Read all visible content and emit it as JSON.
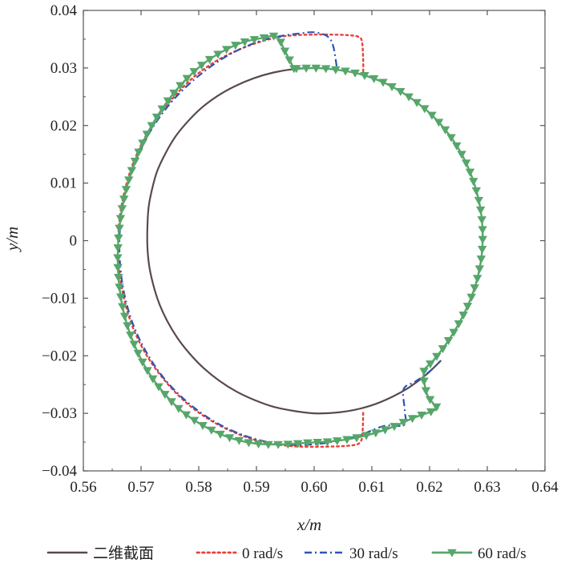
{
  "chart_data": {
    "type": "line",
    "xlabel": "x/m",
    "ylabel": "y/m",
    "xlim": [
      0.56,
      0.64
    ],
    "ylim": [
      -0.04,
      0.04
    ],
    "grid": false,
    "legend_position": "bottom",
    "x_ticks": [
      "0.56",
      "0.57",
      "0.58",
      "0.59",
      "0.60",
      "0.61",
      "0.62",
      "0.63",
      "0.64"
    ],
    "y_ticks": [
      "0.04",
      "0.03",
      "0.02",
      "0.01",
      "0",
      "−0.01",
      "−0.02",
      "−0.03",
      "−0.04"
    ],
    "series": [
      {
        "name": "二维截面",
        "color": "#5a4a4a",
        "style": "solid",
        "points": [
          [
            0.6,
            0.03
          ],
          [
            0.5964,
            0.0298
          ],
          [
            0.5929,
            0.0292
          ],
          [
            0.5895,
            0.0282
          ],
          [
            0.5862,
            0.0268
          ],
          [
            0.5832,
            0.0251
          ],
          [
            0.5804,
            0.023
          ],
          [
            0.578,
            0.0206
          ],
          [
            0.5759,
            0.018
          ],
          [
            0.5742,
            0.0151
          ],
          [
            0.5728,
            0.0121
          ],
          [
            0.5719,
            0.0089
          ],
          [
            0.5713,
            0.0057
          ],
          [
            0.5711,
            0.0023
          ],
          [
            0.5711,
            -0.001
          ],
          [
            0.5714,
            -0.0043
          ],
          [
            0.5721,
            -0.0076
          ],
          [
            0.5731,
            -0.0108
          ],
          [
            0.5745,
            -0.0139
          ],
          [
            0.5763,
            -0.0169
          ],
          [
            0.5784,
            -0.0196
          ],
          [
            0.5808,
            -0.0221
          ],
          [
            0.5835,
            -0.0243
          ],
          [
            0.5865,
            -0.0262
          ],
          [
            0.5897,
            -0.0277
          ],
          [
            0.5931,
            -0.0289
          ],
          [
            0.5966,
            -0.0296
          ],
          [
            0.6,
            -0.03
          ],
          [
            0.6035,
            -0.0299
          ],
          [
            0.607,
            -0.0294
          ],
          [
            0.6103,
            -0.0285
          ],
          [
            0.6136,
            -0.0271
          ],
          [
            0.6166,
            -0.0254
          ],
          [
            0.6194,
            -0.0233
          ],
          [
            0.6219,
            -0.0209
          ]
        ]
      },
      {
        "name": "0 rad/s",
        "color": "#e8403a",
        "style": "dotted",
        "points": [
          [
            0.6085,
            0.0294
          ],
          [
            0.6085,
            0.0312
          ],
          [
            0.6083,
            0.0345
          ],
          [
            0.6077,
            0.0354
          ],
          [
            0.6059,
            0.0357
          ],
          [
            0.6028,
            0.0358
          ],
          [
            0.6,
            0.0358
          ],
          [
            0.597,
            0.0357
          ],
          [
            0.594,
            0.0354
          ],
          [
            0.5905,
            0.0345
          ],
          [
            0.587,
            0.0332
          ],
          [
            0.583,
            0.0312
          ],
          [
            0.579,
            0.0283
          ],
          [
            0.5752,
            0.0244
          ],
          [
            0.5717,
            0.0197
          ],
          [
            0.569,
            0.0144
          ],
          [
            0.5672,
            0.0088
          ],
          [
            0.5662,
            0.003
          ],
          [
            0.5661,
            -0.003
          ],
          [
            0.5668,
            -0.0089
          ],
          [
            0.5684,
            -0.0146
          ],
          [
            0.5709,
            -0.0198
          ],
          [
            0.5742,
            -0.0244
          ],
          [
            0.578,
            -0.0283
          ],
          [
            0.5822,
            -0.0313
          ],
          [
            0.5866,
            -0.0335
          ],
          [
            0.5913,
            -0.035
          ],
          [
            0.5962,
            -0.0357
          ],
          [
            0.6012,
            -0.0358
          ],
          [
            0.6062,
            -0.0356
          ],
          [
            0.608,
            -0.035
          ],
          [
            0.6084,
            -0.033
          ],
          [
            0.6085,
            -0.0296
          ]
        ]
      },
      {
        "name": "30 rad/s",
        "color": "#2b56b5",
        "style": "dashdot",
        "points": [
          [
            0.6039,
            0.0303
          ],
          [
            0.6033,
            0.0338
          ],
          [
            0.6023,
            0.0355
          ],
          [
            0.6,
            0.0362
          ],
          [
            0.5975,
            0.036
          ],
          [
            0.5945,
            0.0356
          ],
          [
            0.591,
            0.0348
          ],
          [
            0.587,
            0.0332
          ],
          [
            0.583,
            0.0309
          ],
          [
            0.579,
            0.0278
          ],
          [
            0.5752,
            0.024
          ],
          [
            0.5718,
            0.0193
          ],
          [
            0.5692,
            0.0141
          ],
          [
            0.5673,
            0.0085
          ],
          [
            0.5664,
            0.0027
          ],
          [
            0.5663,
            -0.003
          ],
          [
            0.567,
            -0.0088
          ],
          [
            0.5686,
            -0.0145
          ],
          [
            0.5711,
            -0.0197
          ],
          [
            0.5743,
            -0.0243
          ],
          [
            0.5782,
            -0.0282
          ],
          [
            0.5825,
            -0.0313
          ],
          [
            0.5872,
            -0.0336
          ],
          [
            0.5921,
            -0.035
          ],
          [
            0.5972,
            -0.0355
          ],
          [
            0.6023,
            -0.0351
          ],
          [
            0.6073,
            -0.034
          ],
          [
            0.6121,
            -0.0322
          ],
          [
            0.6156,
            -0.032
          ],
          [
            0.6157,
            -0.0295
          ],
          [
            0.6155,
            -0.0258
          ],
          [
            0.6175,
            -0.0245
          ],
          [
            0.6199,
            -0.0228
          ],
          [
            0.6218,
            -0.021
          ]
        ]
      },
      {
        "name": "60 rad/s",
        "color": "#56a66a",
        "style": "solid-triangle-markers",
        "points": [
          [
            0.5965,
            0.0299
          ],
          [
            0.595,
            0.0328
          ],
          [
            0.5935,
            0.0354
          ],
          [
            0.591,
            0.0352
          ],
          [
            0.5875,
            0.0344
          ],
          [
            0.584,
            0.0328
          ],
          [
            0.5805,
            0.0305
          ],
          [
            0.5772,
            0.0274
          ],
          [
            0.5742,
            0.0237
          ],
          [
            0.5715,
            0.0194
          ],
          [
            0.5693,
            0.0147
          ],
          [
            0.5676,
            0.0096
          ],
          [
            0.5665,
            0.0042
          ],
          [
            0.566,
            -0.0012
          ],
          [
            0.5661,
            -0.0066
          ],
          [
            0.5669,
            -0.012
          ],
          [
            0.5684,
            -0.017
          ],
          [
            0.5706,
            -0.0217
          ],
          [
            0.5734,
            -0.0258
          ],
          [
            0.5768,
            -0.0294
          ],
          [
            0.5807,
            -0.0321
          ],
          [
            0.585,
            -0.0341
          ],
          [
            0.5895,
            -0.0352
          ],
          [
            0.5942,
            -0.0354
          ],
          [
            0.599,
            -0.0351
          ],
          [
            0.6037,
            -0.0348
          ],
          [
            0.6084,
            -0.034
          ],
          [
            0.613,
            -0.0326
          ],
          [
            0.6172,
            -0.0308
          ],
          [
            0.6212,
            -0.0293
          ],
          [
            0.6208,
            -0.0285
          ],
          [
            0.6195,
            -0.0265
          ],
          [
            0.619,
            -0.0228
          ],
          [
            0.6205,
            -0.021
          ],
          [
            0.6229,
            -0.0179
          ],
          [
            0.6254,
            -0.0138
          ],
          [
            0.6274,
            -0.0094
          ],
          [
            0.6287,
            -0.0047
          ],
          [
            0.6292,
            0.0001
          ],
          [
            0.6289,
            0.005
          ],
          [
            0.6278,
            0.0097
          ],
          [
            0.626,
            0.0142
          ],
          [
            0.6234,
            0.0184
          ],
          [
            0.6202,
            0.022
          ],
          [
            0.6164,
            0.025
          ],
          [
            0.6122,
            0.0274
          ],
          [
            0.6077,
            0.029
          ],
          [
            0.603,
            0.0298
          ],
          [
            0.6,
            0.03
          ],
          [
            0.5965,
            0.0299
          ]
        ]
      }
    ]
  },
  "legend": {
    "items": [
      "二维截面",
      "0 rad/s",
      "30 rad/s",
      "60 rad/s"
    ]
  }
}
